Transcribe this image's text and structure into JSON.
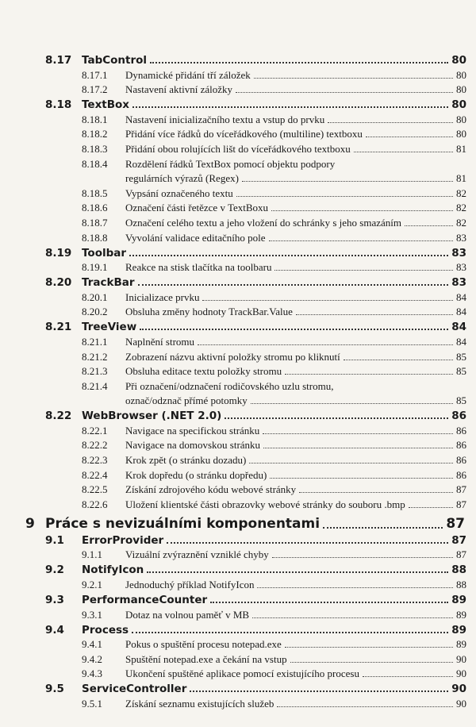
{
  "entries": [
    {
      "level": 2,
      "number": "8.17",
      "lines": [
        "TabControl"
      ],
      "page": 80
    },
    {
      "level": 3,
      "number": "8.17.1",
      "lines": [
        "Dynamické přidání tří záložek"
      ],
      "page": 80
    },
    {
      "level": 3,
      "number": "8.17.2",
      "lines": [
        "Nastavení aktivní záložky"
      ],
      "page": 80
    },
    {
      "level": 2,
      "number": "8.18",
      "lines": [
        "TextBox"
      ],
      "page": 80
    },
    {
      "level": 3,
      "number": "8.18.1",
      "lines": [
        "Nastavení inicializačního textu a vstup do prvku"
      ],
      "page": 80
    },
    {
      "level": 3,
      "number": "8.18.2",
      "lines": [
        "Přidání více řádků do víceřádkového (multiline) textboxu"
      ],
      "page": 80
    },
    {
      "level": 3,
      "number": "8.18.3",
      "lines": [
        "Přidání obou rolujících lišt do víceřádkového textboxu"
      ],
      "page": 81
    },
    {
      "level": 3,
      "number": "8.18.4",
      "lines": [
        "Rozdělení řádků TextBox pomocí objektu podpory",
        "regulárních výrazů (Regex)"
      ],
      "page": 81
    },
    {
      "level": 3,
      "number": "8.18.5",
      "lines": [
        "Vypsání označeného textu"
      ],
      "page": 82
    },
    {
      "level": 3,
      "number": "8.18.6",
      "lines": [
        "Označení části řetězce v TextBoxu"
      ],
      "page": 82
    },
    {
      "level": 3,
      "number": "8.18.7",
      "lines": [
        "Označení celého textu a jeho vložení do schránky s jeho smazáním"
      ],
      "page": 82
    },
    {
      "level": 3,
      "number": "8.18.8",
      "lines": [
        "Vyvolání validace editačního pole"
      ],
      "page": 83
    },
    {
      "level": 2,
      "number": "8.19",
      "lines": [
        "Toolbar"
      ],
      "page": 83
    },
    {
      "level": 3,
      "number": "8.19.1",
      "lines": [
        "Reakce na stisk tlačítka na toolbaru"
      ],
      "page": 83
    },
    {
      "level": 2,
      "number": "8.20",
      "lines": [
        "TrackBar"
      ],
      "page": 83
    },
    {
      "level": 3,
      "number": "8.20.1",
      "lines": [
        "Inicializace prvku"
      ],
      "page": 84
    },
    {
      "level": 3,
      "number": "8.20.2",
      "lines": [
        "Obsluha změny hodnoty TrackBar.Value"
      ],
      "page": 84
    },
    {
      "level": 2,
      "number": "8.21",
      "lines": [
        "TreeView"
      ],
      "page": 84
    },
    {
      "level": 3,
      "number": "8.21.1",
      "lines": [
        "Naplnění stromu"
      ],
      "page": 84
    },
    {
      "level": 3,
      "number": "8.21.2",
      "lines": [
        "Zobrazení názvu aktivní položky stromu po kliknutí"
      ],
      "page": 85
    },
    {
      "level": 3,
      "number": "8.21.3",
      "lines": [
        "Obsluha editace textu položky stromu"
      ],
      "page": 85
    },
    {
      "level": 3,
      "number": "8.21.4",
      "lines": [
        "Při označení/odznačení rodičovského uzlu stromu,",
        "označ/odznač přímé potomky"
      ],
      "page": 85
    },
    {
      "level": 2,
      "number": "8.22",
      "lines": [
        "WebBrowser (.NET 2.0)"
      ],
      "page": 86
    },
    {
      "level": 3,
      "number": "8.22.1",
      "lines": [
        "Navigace na specifickou stránku"
      ],
      "page": 86
    },
    {
      "level": 3,
      "number": "8.22.2",
      "lines": [
        "Navigace na domovskou stránku"
      ],
      "page": 86
    },
    {
      "level": 3,
      "number": "8.22.3",
      "lines": [
        "Krok zpět (o stránku dozadu)"
      ],
      "page": 86
    },
    {
      "level": 3,
      "number": "8.22.4",
      "lines": [
        "Krok dopředu (o stránku dopředu)"
      ],
      "page": 86
    },
    {
      "level": 3,
      "number": "8.22.5",
      "lines": [
        "Získání zdrojového kódu webové stránky"
      ],
      "page": 87
    },
    {
      "level": 3,
      "number": "8.22.6",
      "lines": [
        "Uložení klientské části obrazovky webové stránky do souboru .bmp"
      ],
      "page": 87
    },
    {
      "level": 1,
      "number": "9",
      "lines": [
        "Práce s nevizuálními komponentami"
      ],
      "page": 87
    },
    {
      "level": 2,
      "number": "9.1",
      "lines": [
        "ErrorProvider"
      ],
      "page": 87
    },
    {
      "level": 3,
      "number": "9.1.1",
      "lines": [
        "Vizuální zvýraznění vzniklé chyby"
      ],
      "page": 87
    },
    {
      "level": 2,
      "number": "9.2",
      "lines": [
        "NotifyIcon"
      ],
      "page": 88
    },
    {
      "level": 3,
      "number": "9.2.1",
      "lines": [
        "Jednoduchý příklad NotifyIcon"
      ],
      "page": 88
    },
    {
      "level": 2,
      "number": "9.3",
      "lines": [
        "PerformanceCounter"
      ],
      "page": 89
    },
    {
      "level": 3,
      "number": "9.3.1",
      "lines": [
        "Dotaz na volnou paměť v MB"
      ],
      "page": 89
    },
    {
      "level": 2,
      "number": "9.4",
      "lines": [
        "Process"
      ],
      "page": 89
    },
    {
      "level": 3,
      "number": "9.4.1",
      "lines": [
        "Pokus o spuštění procesu notepad.exe"
      ],
      "page": 89
    },
    {
      "level": 3,
      "number": "9.4.2",
      "lines": [
        "Spuštění notepad.exe a čekání na vstup"
      ],
      "page": 90
    },
    {
      "level": 3,
      "number": "9.4.3",
      "lines": [
        "Ukončení spuštěné aplikace pomocí existujícího procesu"
      ],
      "page": 90
    },
    {
      "level": 2,
      "number": "9.5",
      "lines": [
        "ServiceController"
      ],
      "page": 90
    },
    {
      "level": 3,
      "number": "9.5.1",
      "lines": [
        "Získání seznamu existujících služeb"
      ],
      "page": 90
    }
  ]
}
